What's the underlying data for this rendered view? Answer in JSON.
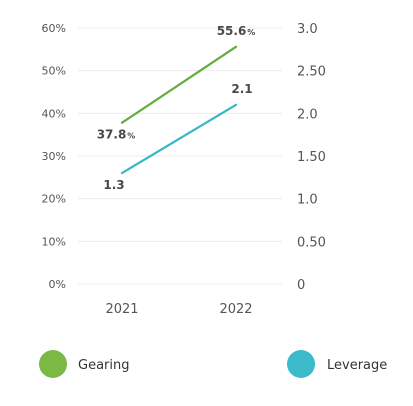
{
  "chart_data": {
    "type": "line",
    "x": [
      "2021",
      "2022"
    ],
    "series": [
      {
        "name": "Gearing",
        "axis": "left",
        "values": [
          37.8,
          55.6
        ],
        "value_labels": [
          "37.8",
          "55.6"
        ],
        "value_unit": "%",
        "color": "#62ac3f"
      },
      {
        "name": "Leverage",
        "axis": "right",
        "values": [
          1.3,
          2.1
        ],
        "value_labels": [
          "1.3",
          "2.1"
        ],
        "value_unit": "",
        "color": "#38b7c6"
      }
    ],
    "y_left": {
      "range": [
        0,
        60
      ],
      "ticks": [
        0,
        10,
        20,
        30,
        40,
        50,
        60
      ],
      "tick_labels": [
        "0%",
        "10%",
        "20%",
        "30%",
        "40%",
        "50%",
        "60%"
      ]
    },
    "y_right": {
      "range": [
        0,
        3
      ],
      "ticks": [
        0,
        0.5,
        1,
        1.5,
        2,
        2.5,
        3
      ],
      "tick_labels": [
        "0",
        "0.50",
        "1.0",
        "1.50",
        "2.0",
        "2.50",
        "3.0"
      ]
    },
    "grid": "horizontal",
    "legend_position": "bottom",
    "legend": [
      {
        "label": "Gearing",
        "color": "#7ab944"
      },
      {
        "label": "Leverage",
        "color": "#3bbac9"
      }
    ]
  }
}
